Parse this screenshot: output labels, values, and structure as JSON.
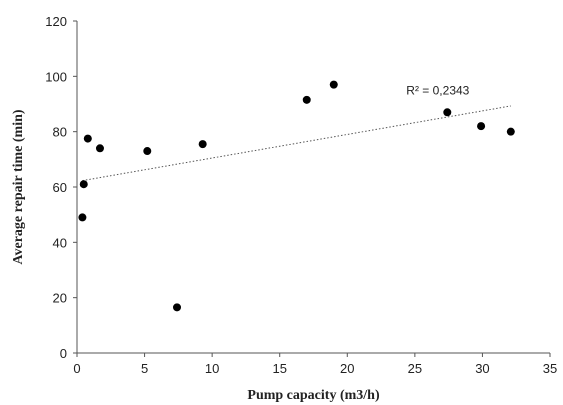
{
  "chart_data": {
    "type": "scatter",
    "xlabel": "Pump capacity (m3/h)",
    "ylabel": "Average repair time  (min)",
    "xlim": [
      0,
      35
    ],
    "ylim": [
      0,
      120
    ],
    "xticks": [
      0,
      5,
      10,
      15,
      20,
      25,
      30,
      35
    ],
    "yticks": [
      0,
      20,
      40,
      60,
      80,
      100,
      120
    ],
    "grid": false,
    "points": [
      {
        "x": 0.4,
        "y": 49
      },
      {
        "x": 0.5,
        "y": 61
      },
      {
        "x": 0.8,
        "y": 77.5
      },
      {
        "x": 1.7,
        "y": 74
      },
      {
        "x": 5.2,
        "y": 73
      },
      {
        "x": 7.4,
        "y": 16.5
      },
      {
        "x": 9.3,
        "y": 75.5
      },
      {
        "x": 17.0,
        "y": 91.5
      },
      {
        "x": 19.0,
        "y": 97
      },
      {
        "x": 27.4,
        "y": 87
      },
      {
        "x": 29.9,
        "y": 82
      },
      {
        "x": 32.1,
        "y": 80
      }
    ],
    "trendline": {
      "type": "linear",
      "style": "dotted",
      "x": [
        0.4,
        32.1
      ],
      "y": [
        62.3,
        89.3
      ],
      "label": "R² = 0,2343"
    },
    "marker_color": "#000000"
  }
}
